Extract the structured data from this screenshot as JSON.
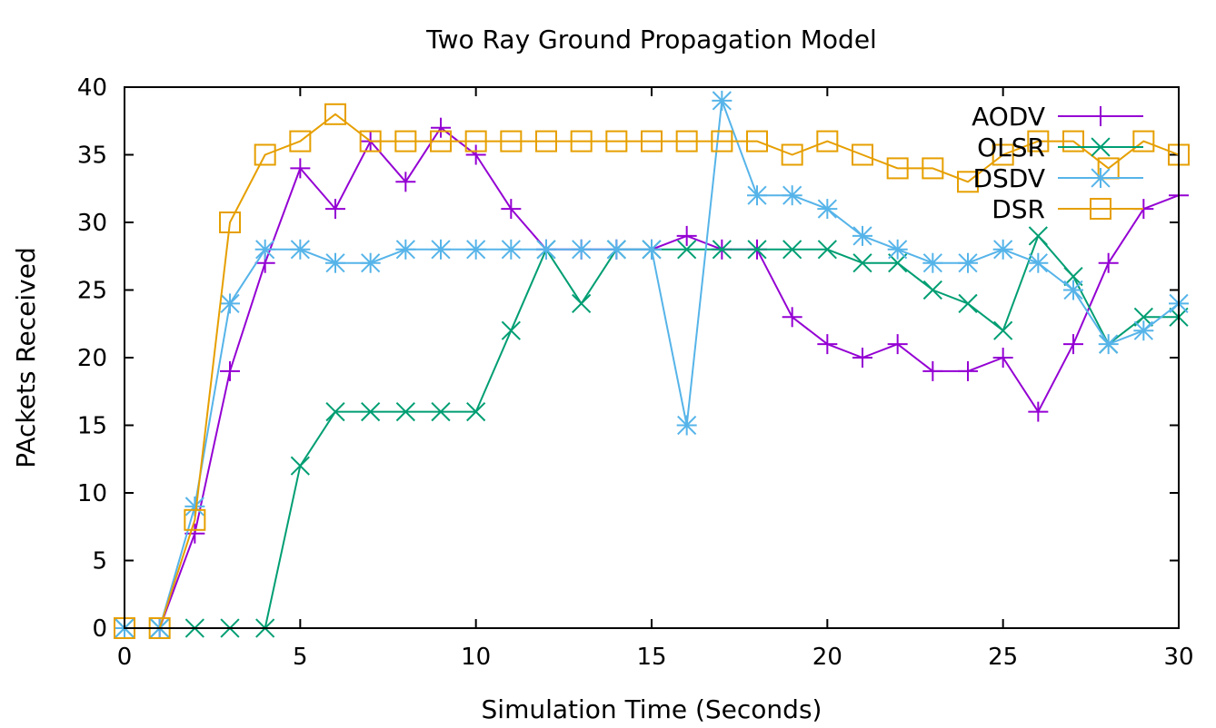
{
  "chart_data": {
    "type": "line",
    "title": "Two Ray Ground Propagation Model",
    "xlabel": "Simulation Time (Seconds)",
    "ylabel": "PAckets Received",
    "xlim": [
      0,
      30
    ],
    "ylim": [
      0,
      40
    ],
    "xticks": [
      "0",
      "5",
      "10",
      "15",
      "20",
      "25",
      "30"
    ],
    "yticks": [
      "0",
      "5",
      "10",
      "15",
      "20",
      "25",
      "30",
      "35",
      "40"
    ],
    "grid": false,
    "legend_position": "top-right",
    "x": [
      0,
      1,
      2,
      3,
      4,
      5,
      6,
      7,
      8,
      9,
      10,
      11,
      12,
      13,
      14,
      15,
      16,
      17,
      18,
      19,
      20,
      21,
      22,
      23,
      24,
      25,
      26,
      27,
      28,
      29,
      30
    ],
    "series": [
      {
        "name": "AODV",
        "color": "#9400d3",
        "marker": "plus",
        "values": [
          0,
          0,
          7,
          19,
          27,
          34,
          31,
          36,
          33,
          37,
          35,
          31,
          28,
          28,
          28,
          28,
          29,
          28,
          28,
          23,
          21,
          20,
          21,
          19,
          19,
          20,
          16,
          21,
          27,
          31,
          32
        ]
      },
      {
        "name": "OLSR",
        "color": "#009e73",
        "marker": "cross",
        "values": [
          0,
          0,
          0,
          0,
          0,
          12,
          16,
          16,
          16,
          16,
          16,
          22,
          28,
          24,
          28,
          28,
          28,
          28,
          28,
          28,
          28,
          27,
          27,
          25,
          24,
          22,
          29,
          26,
          21,
          23,
          23
        ]
      },
      {
        "name": "DSDV",
        "color": "#56b4e9",
        "marker": "star",
        "values": [
          0,
          0,
          9,
          24,
          28,
          28,
          27,
          27,
          28,
          28,
          28,
          28,
          28,
          28,
          28,
          28,
          15,
          39,
          32,
          32,
          31,
          29,
          28,
          27,
          27,
          28,
          27,
          25,
          21,
          22,
          24
        ]
      },
      {
        "name": "DSR",
        "color": "#e69f00",
        "marker": "square",
        "values": [
          0,
          0,
          8,
          30,
          35,
          36,
          38,
          36,
          36,
          36,
          36,
          36,
          36,
          36,
          36,
          36,
          36,
          36,
          36,
          35,
          36,
          35,
          34,
          34,
          33,
          35,
          36,
          36,
          34,
          36,
          35
        ]
      }
    ]
  }
}
